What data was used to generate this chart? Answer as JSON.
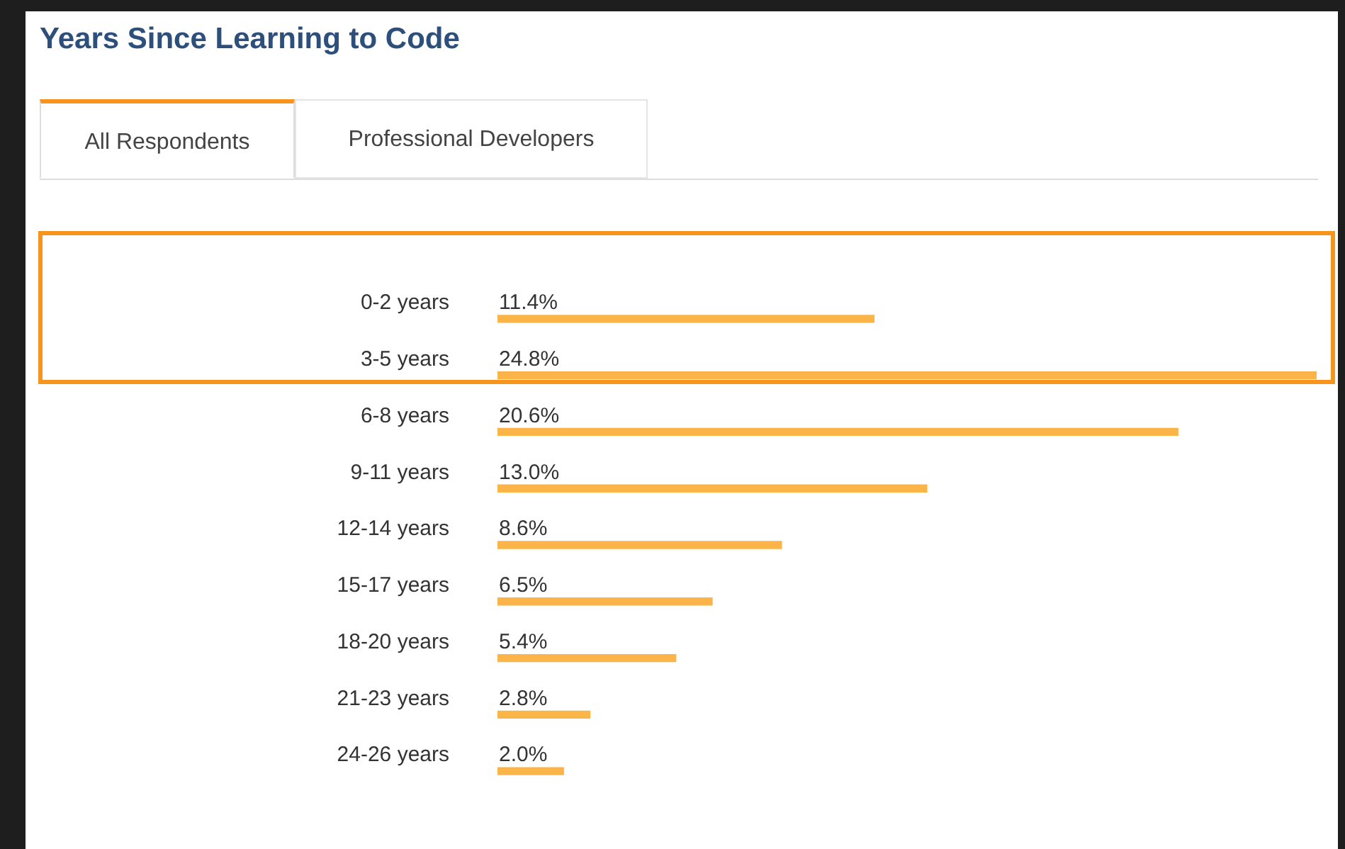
{
  "chart_data": {
    "type": "bar",
    "orientation": "horizontal",
    "title": "Years Since Learning to Code",
    "annotations": [
      "All Respondents",
      "Professional Developers"
    ],
    "categories": [
      "0-2 years",
      "3-5 years",
      "6-8 years",
      "9-11 years",
      "12-14 years",
      "15-17 years",
      "18-20 years",
      "21-23 years",
      "24-26 years"
    ],
    "values": [
      11.4,
      24.8,
      20.6,
      13.0,
      8.6,
      6.5,
      5.4,
      2.8,
      2.0
    ],
    "value_labels": [
      "11.4%",
      "24.8%",
      "20.6%",
      "13.0%",
      "8.6%",
      "6.5%",
      "5.4%",
      "2.8%",
      "2.0%"
    ],
    "color": "#fbb448",
    "legend": false
  }
}
